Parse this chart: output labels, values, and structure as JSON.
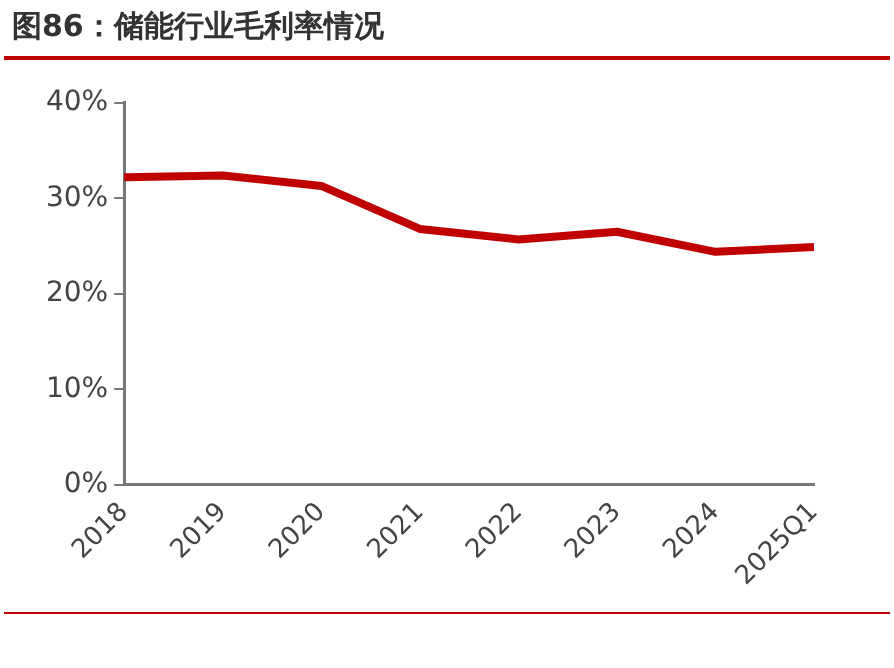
{
  "chart_data": {
    "type": "line",
    "title": "图86：储能行业毛利率情况",
    "categories": [
      "2018",
      "2019",
      "2020",
      "2021",
      "2022",
      "2023",
      "2024",
      "2025Q1"
    ],
    "series": [
      {
        "color": "#c00000",
        "values": [
          32.2,
          32.4,
          31.3,
          26.8,
          25.7,
          26.5,
          24.4,
          24.9
        ]
      }
    ],
    "ylim": [
      0,
      40
    ],
    "yticks": [
      {
        "value": 0,
        "label": "0%"
      },
      {
        "value": 10,
        "label": "10%"
      },
      {
        "value": 20,
        "label": "20%"
      },
      {
        "value": 30,
        "label": "30%"
      },
      {
        "value": 40,
        "label": "40%"
      }
    ],
    "grid": false,
    "legend": false,
    "marker": "none",
    "line_style": "solid"
  }
}
